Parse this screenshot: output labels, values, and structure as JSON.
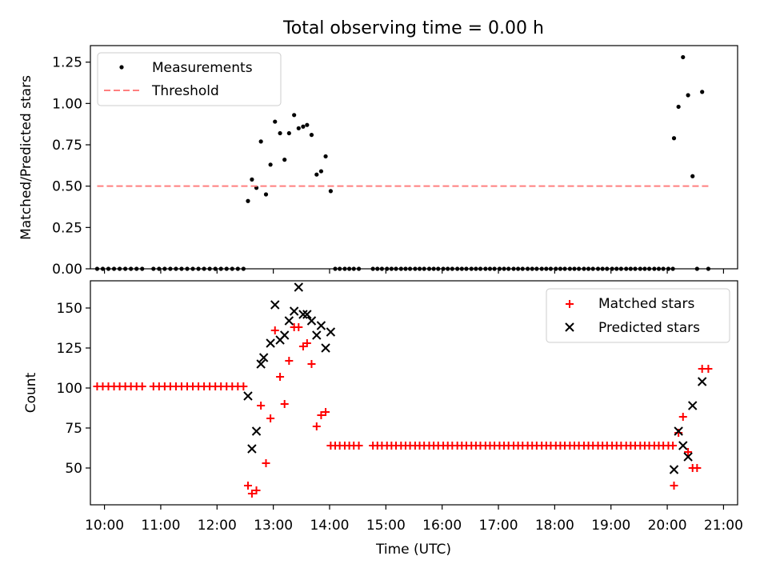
{
  "chart_data": [
    {
      "type": "scatter",
      "title": "Total observing time = 0.00 h",
      "ylabel": "Matched/Predicted stars",
      "xlabel": "",
      "xlim": [
        9.75,
        21.25
      ],
      "ylim": [
        0,
        1.35
      ],
      "yticks": [
        0,
        0.25,
        0.5,
        0.75,
        1.0,
        1.25
      ],
      "ytick_labels": [
        "0.00",
        "0.25",
        "0.50",
        "0.75",
        "1.00",
        "1.25"
      ],
      "legend_position": "top-left",
      "series": [
        {
          "name": "Measurements",
          "color": "#000000",
          "marker": "dot",
          "x": [
            9.87,
            9.97,
            10.07,
            10.17,
            10.27,
            10.37,
            10.47,
            10.57,
            10.67,
            10.87,
            10.97,
            11.07,
            11.17,
            11.27,
            11.37,
            11.47,
            11.57,
            11.67,
            11.77,
            11.87,
            11.97,
            12.07,
            12.17,
            12.27,
            12.37,
            12.47,
            12.55,
            12.62,
            12.7,
            12.78,
            12.87,
            12.95,
            13.03,
            13.12,
            13.2,
            13.28,
            13.37,
            13.45,
            13.53,
            13.6,
            13.68,
            13.77,
            13.85,
            13.93,
            14.02,
            14.1,
            14.18,
            14.27,
            14.35,
            14.43,
            14.52,
            14.77,
            14.85,
            14.93,
            15.02,
            15.1,
            15.18,
            15.27,
            15.35,
            15.43,
            15.52,
            15.6,
            15.68,
            15.77,
            15.85,
            15.93,
            16.02,
            16.1,
            16.18,
            16.27,
            16.35,
            16.43,
            16.52,
            16.6,
            16.68,
            16.77,
            16.85,
            16.93,
            17.02,
            17.1,
            17.18,
            17.27,
            17.35,
            17.43,
            17.52,
            17.6,
            17.68,
            17.77,
            17.85,
            17.93,
            18.02,
            18.1,
            18.18,
            18.27,
            18.35,
            18.43,
            18.52,
            18.6,
            18.68,
            18.77,
            18.85,
            18.93,
            19.02,
            19.1,
            19.18,
            19.27,
            19.35,
            19.43,
            19.52,
            19.6,
            19.68,
            19.77,
            19.85,
            19.93,
            20.02,
            20.1,
            20.12,
            20.2,
            20.28,
            20.37,
            20.45,
            20.53,
            20.62,
            20.73
          ],
          "y": [
            0,
            0,
            0,
            0,
            0,
            0,
            0,
            0,
            0,
            0,
            0,
            0,
            0,
            0,
            0,
            0,
            0,
            0,
            0,
            0,
            0,
            0,
            0,
            0,
            0,
            0,
            0.41,
            0.54,
            0.49,
            0.77,
            0.45,
            0.63,
            0.89,
            0.82,
            0.66,
            0.82,
            0.93,
            0.85,
            0.86,
            0.87,
            0.81,
            0.57,
            0.59,
            0.68,
            0.47,
            0,
            0,
            0,
            0,
            0,
            0,
            0,
            0,
            0,
            0,
            0,
            0,
            0,
            0,
            0,
            0,
            0,
            0,
            0,
            0,
            0,
            0,
            0,
            0,
            0,
            0,
            0,
            0,
            0,
            0,
            0,
            0,
            0,
            0,
            0,
            0,
            0,
            0,
            0,
            0,
            0,
            0,
            0,
            0,
            0,
            0,
            0,
            0,
            0,
            0,
            0,
            0,
            0,
            0,
            0,
            0,
            0,
            0,
            0,
            0,
            0,
            0,
            0,
            0,
            0,
            0,
            0,
            0,
            0,
            0,
            0,
            0.79,
            0.98,
            1.28,
            1.05,
            0.56,
            0,
            1.07,
            0
          ]
        },
        {
          "name": "Threshold",
          "color": "#ff7f7f",
          "style": "dashed",
          "x": [
            9.87,
            20.73
          ],
          "y": [
            0.5,
            0.5
          ]
        }
      ]
    },
    {
      "type": "scatter",
      "title": "",
      "ylabel": "Count",
      "xlabel": "Time (UTC)",
      "xlim": [
        9.75,
        21.25
      ],
      "ylim": [
        27,
        167
      ],
      "yticks": [
        50,
        75,
        100,
        125,
        150
      ],
      "ytick_labels": [
        "50",
        "75",
        "100",
        "125",
        "150"
      ],
      "xticks": [
        10,
        11,
        12,
        13,
        14,
        15,
        16,
        17,
        18,
        19,
        20,
        21
      ],
      "xtick_labels": [
        "10:00",
        "11:00",
        "12:00",
        "13:00",
        "14:00",
        "15:00",
        "16:00",
        "17:00",
        "18:00",
        "19:00",
        "20:00",
        "21:00"
      ],
      "legend_position": "top-right",
      "series": [
        {
          "name": "Matched stars",
          "color": "#ff0000",
          "marker": "plus",
          "x": [
            9.87,
            9.97,
            10.07,
            10.17,
            10.27,
            10.37,
            10.47,
            10.57,
            10.67,
            10.87,
            10.97,
            11.07,
            11.17,
            11.27,
            11.37,
            11.47,
            11.57,
            11.67,
            11.77,
            11.87,
            11.97,
            12.07,
            12.17,
            12.27,
            12.37,
            12.47,
            12.55,
            12.62,
            12.7,
            12.78,
            12.87,
            12.95,
            13.03,
            13.12,
            13.2,
            13.28,
            13.37,
            13.45,
            13.53,
            13.6,
            13.68,
            13.77,
            13.85,
            13.93,
            14.02,
            14.1,
            14.18,
            14.27,
            14.35,
            14.43,
            14.52,
            14.77,
            14.85,
            14.93,
            15.02,
            15.1,
            15.18,
            15.27,
            15.35,
            15.43,
            15.52,
            15.6,
            15.68,
            15.77,
            15.85,
            15.93,
            16.02,
            16.1,
            16.18,
            16.27,
            16.35,
            16.43,
            16.52,
            16.6,
            16.68,
            16.77,
            16.85,
            16.93,
            17.02,
            17.1,
            17.18,
            17.27,
            17.35,
            17.43,
            17.52,
            17.6,
            17.68,
            17.77,
            17.85,
            17.93,
            18.02,
            18.1,
            18.18,
            18.27,
            18.35,
            18.43,
            18.52,
            18.6,
            18.68,
            18.77,
            18.85,
            18.93,
            19.02,
            19.1,
            19.18,
            19.27,
            19.35,
            19.43,
            19.52,
            19.6,
            19.68,
            19.77,
            19.85,
            19.93,
            20.02,
            20.1,
            20.12,
            20.2,
            20.28,
            20.37,
            20.45,
            20.53,
            20.62,
            20.73
          ],
          "y": [
            101,
            101,
            101,
            101,
            101,
            101,
            101,
            101,
            101,
            101,
            101,
            101,
            101,
            101,
            101,
            101,
            101,
            101,
            101,
            101,
            101,
            101,
            101,
            101,
            101,
            101,
            39,
            34,
            36,
            89,
            53,
            81,
            136,
            107,
            90,
            117,
            138,
            138,
            126,
            128,
            115,
            76,
            83,
            85,
            64,
            64,
            64,
            64,
            64,
            64,
            64,
            64,
            64,
            64,
            64,
            64,
            64,
            64,
            64,
            64,
            64,
            64,
            64,
            64,
            64,
            64,
            64,
            64,
            64,
            64,
            64,
            64,
            64,
            64,
            64,
            64,
            64,
            64,
            64,
            64,
            64,
            64,
            64,
            64,
            64,
            64,
            64,
            64,
            64,
            64,
            64,
            64,
            64,
            64,
            64,
            64,
            64,
            64,
            64,
            64,
            64,
            64,
            64,
            64,
            64,
            64,
            64,
            64,
            64,
            64,
            64,
            64,
            64,
            64,
            64,
            64,
            39,
            72,
            82,
            60,
            50,
            50,
            112,
            112
          ]
        },
        {
          "name": "Predicted stars",
          "color": "#000000",
          "marker": "x",
          "x": [
            12.55,
            12.62,
            12.7,
            12.78,
            12.83,
            12.95,
            13.03,
            13.12,
            13.2,
            13.28,
            13.37,
            13.45,
            13.53,
            13.6,
            13.68,
            13.77,
            13.85,
            13.93,
            14.02,
            20.12,
            20.2,
            20.28,
            20.37,
            20.45,
            20.62
          ],
          "y": [
            95,
            62,
            73,
            115,
            119,
            128,
            152,
            130,
            133,
            142,
            148,
            163,
            146,
            146,
            142,
            133,
            139,
            125,
            135,
            49,
            73,
            64,
            57,
            89,
            104
          ]
        }
      ]
    }
  ]
}
